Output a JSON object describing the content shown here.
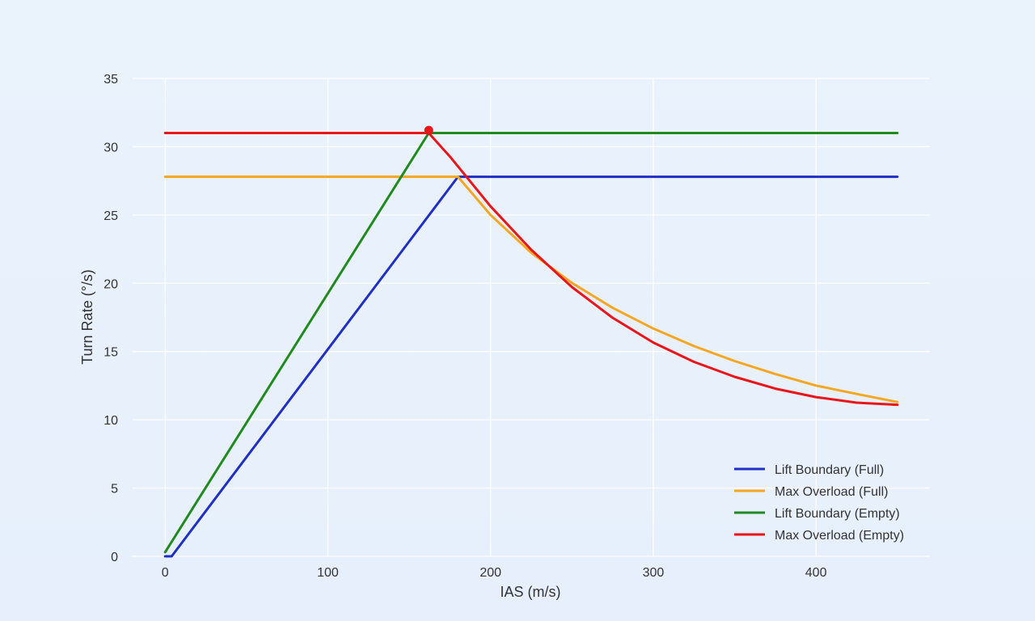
{
  "chart_data": {
    "type": "line",
    "title": "",
    "xlabel": "IAS (m/s)",
    "ylabel": "Turn Rate (°/s)",
    "xlim": [
      -20,
      470
    ],
    "ylim": [
      0,
      35
    ],
    "x_ticks": [
      0,
      100,
      200,
      300,
      400
    ],
    "y_ticks": [
      0,
      5,
      10,
      15,
      20,
      25,
      30,
      35
    ],
    "grid": true,
    "legend_position": "bottom-right",
    "series": [
      {
        "name": "Lift Boundary (Full)",
        "color": "#1f2fc4",
        "x": [
          0,
          4,
          180,
          450
        ],
        "y": [
          0,
          0,
          27.8,
          27.8
        ]
      },
      {
        "name": "Max Overload (Full)",
        "color": "#f5a623",
        "x": [
          0,
          180,
          200,
          225,
          250,
          275,
          300,
          325,
          350,
          375,
          400,
          425,
          450
        ],
        "y": [
          27.8,
          27.8,
          25.0,
          22.24,
          20.02,
          18.2,
          16.68,
          15.4,
          14.3,
          13.35,
          12.51,
          11.89,
          11.3
        ]
      },
      {
        "name": "Lift Boundary (Empty)",
        "color": "#1f8a1f",
        "x": [
          0,
          162,
          450
        ],
        "y": [
          0.3,
          31.0,
          31.0
        ]
      },
      {
        "name": "Max Overload (Empty)",
        "color": "#e8151b",
        "x": [
          0,
          162,
          175,
          200,
          225,
          250,
          275,
          300,
          325,
          350,
          375,
          400,
          425,
          450
        ],
        "y": [
          31.0,
          31.0,
          29.28,
          25.63,
          22.45,
          19.72,
          17.47,
          15.66,
          14.24,
          13.15,
          12.28,
          11.66,
          11.25,
          11.1
        ]
      }
    ],
    "markers": [
      {
        "x": 162,
        "y": 31.2,
        "color": "#e8151b"
      }
    ]
  }
}
